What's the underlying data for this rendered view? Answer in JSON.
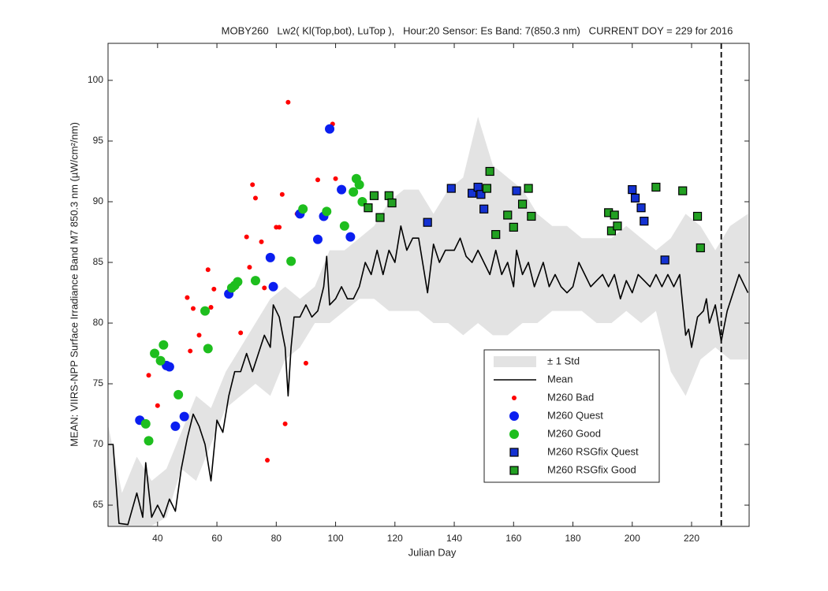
{
  "chart_data": {
    "type": "line",
    "title": "MOBY260   Lw2( Kl(Top,bot), LuTop ),   Hour:20 Sensor: Es Band: 7(850.3 nm)   CURRENT DOY = 229 for 2016",
    "x_label": "Julian Day",
    "y_label": "MEAN: VIIRS-NPP Surface Irradiance Band M7 850.3 nm (µW/cm²/nm)",
    "xlim": [
      23.3,
      239.4
    ],
    "ylim": [
      63.25,
      103.05
    ],
    "xticks": [
      40,
      60,
      80,
      100,
      120,
      140,
      160,
      180,
      200,
      220
    ],
    "yticks": [
      65,
      70,
      75,
      80,
      85,
      90,
      95,
      100
    ],
    "vline_x": 230,
    "series": [
      {
        "name": "± 1 Std",
        "type": "band",
        "color": "#e3e3e3",
        "x": [
          23,
          28,
          33,
          38,
          43,
          48,
          53,
          58,
          63,
          68,
          73,
          78,
          83,
          88,
          93,
          98,
          103,
          108,
          113,
          118,
          123,
          128,
          133,
          138,
          143,
          148,
          153,
          158,
          163,
          168,
          173,
          178,
          183,
          188,
          193,
          198,
          203,
          208,
          213,
          218,
          223,
          228,
          233,
          239
        ],
        "upper": [
          72,
          66,
          69,
          67,
          68,
          71,
          74,
          73,
          76,
          78,
          80,
          82,
          83,
          82,
          83,
          86,
          86,
          87,
          88,
          90,
          91,
          91,
          89,
          91,
          92,
          97,
          93,
          92,
          91,
          89,
          88,
          88,
          87,
          87,
          87,
          88,
          87,
          86,
          87,
          89,
          88,
          86,
          88,
          89
        ],
        "lower": [
          63.3,
          63.3,
          63.3,
          63.3,
          64,
          68,
          67,
          70,
          73,
          74,
          75,
          74,
          77,
          78,
          80,
          80,
          81,
          82,
          82,
          81,
          81,
          81,
          80,
          80,
          79,
          80,
          79,
          79,
          80,
          80,
          81,
          81,
          81,
          80,
          80,
          81,
          80,
          81,
          76,
          74,
          77,
          78,
          77,
          77
        ]
      },
      {
        "name": "Mean",
        "type": "line",
        "color": "#000000",
        "x": [
          23,
          25,
          27,
          30,
          33,
          35,
          36,
          38,
          40,
          42,
          44,
          46,
          48,
          50,
          52,
          54,
          56,
          58,
          60,
          62,
          64,
          66,
          68,
          70,
          72,
          74,
          76,
          78,
          79,
          81,
          83,
          84,
          85,
          86,
          88,
          90,
          92,
          94,
          96,
          97,
          98,
          100,
          102,
          104,
          106,
          108,
          110,
          112,
          114,
          116,
          118,
          120,
          122,
          124,
          126,
          128,
          130,
          131,
          133,
          135,
          137,
          140,
          142,
          144,
          146,
          148,
          150,
          152,
          154,
          156,
          158,
          160,
          161,
          163,
          165,
          167,
          170,
          172,
          174,
          176,
          178,
          180,
          182,
          184,
          186,
          188,
          190,
          192,
          194,
          196,
          198,
          200,
          202,
          204,
          206,
          208,
          210,
          212,
          214,
          216,
          218,
          219,
          220,
          222,
          224,
          225,
          226,
          228,
          230,
          232,
          234,
          236,
          238,
          239
        ],
        "values": [
          70,
          70,
          63.5,
          63.4,
          66,
          64,
          68.5,
          64,
          65,
          64,
          65.5,
          64.5,
          68,
          70.5,
          72.5,
          71.5,
          70,
          67,
          72,
          71,
          74,
          76,
          76,
          77.5,
          76,
          77.5,
          79,
          78,
          81.5,
          80.5,
          78,
          74,
          78,
          80.5,
          80.5,
          81.5,
          80.5,
          81,
          83,
          85.5,
          81.5,
          82,
          83,
          82,
          82,
          83,
          85,
          84,
          86,
          84,
          86,
          85,
          88,
          86,
          87,
          87,
          84,
          82.5,
          86.5,
          85,
          86,
          86,
          87,
          85.5,
          85,
          86,
          85,
          84,
          86,
          84,
          85,
          83,
          86,
          84,
          85,
          83,
          85,
          83,
          84,
          83,
          82.5,
          83,
          85,
          84,
          83,
          83.5,
          84,
          83,
          84,
          82,
          83.5,
          82.5,
          84,
          83.5,
          83,
          84,
          83,
          84,
          83,
          84,
          79,
          79.5,
          78,
          80.5,
          81,
          82,
          80,
          81.5,
          78.5,
          81,
          82.5,
          84,
          83,
          82.5
        ]
      },
      {
        "name": "M260 Bad",
        "type": "scatter",
        "marker": "dot",
        "color": "#ff0000",
        "x": [
          37,
          40,
          50,
          51,
          52,
          54,
          56,
          57,
          58,
          59,
          68,
          70,
          71,
          72,
          73,
          75,
          76,
          77,
          80,
          81,
          82,
          83,
          84,
          87,
          90,
          94,
          99,
          100
        ],
        "values": [
          75.7,
          73.2,
          82.1,
          77.7,
          81.2,
          79,
          81,
          84.4,
          81.3,
          82.8,
          79.2,
          87.1,
          84.6,
          91.4,
          90.3,
          86.7,
          82.9,
          68.7,
          87.9,
          87.9,
          90.6,
          71.7,
          98.2,
          89,
          76.7,
          91.8,
          96.4,
          91.9
        ]
      },
      {
        "name": "M260 Quest",
        "type": "scatter",
        "marker": "circle",
        "color": "#0a1ef0",
        "x": [
          34,
          43,
          44,
          46,
          49,
          64,
          78,
          79,
          88,
          94,
          96,
          98,
          102,
          105
        ],
        "values": [
          72,
          76.5,
          76.4,
          71.5,
          72.3,
          82.4,
          85.4,
          83,
          89,
          86.9,
          88.8,
          96,
          91,
          87.1
        ]
      },
      {
        "name": "M260 Good",
        "type": "scatter",
        "marker": "circle",
        "color": "#1ebe1e",
        "x": [
          36,
          37,
          39,
          41,
          42,
          47,
          56,
          57,
          65,
          66,
          67,
          73,
          85,
          89,
          97,
          103,
          106,
          107,
          108,
          109
        ],
        "values": [
          71.7,
          70.3,
          77.5,
          76.9,
          78.2,
          74.1,
          81,
          77.9,
          82.9,
          83.1,
          83.4,
          83.5,
          85.1,
          89.4,
          89.2,
          88,
          90.8,
          91.9,
          91.4,
          90
        ]
      },
      {
        "name": "M260 RSGfix Quest",
        "type": "scatter",
        "marker": "square",
        "color": "#1432d2",
        "x": [
          131,
          139,
          146,
          148,
          149,
          150,
          161,
          200,
          201,
          203,
          204,
          211
        ],
        "values": [
          88.3,
          91.1,
          90.7,
          91.2,
          90.6,
          89.4,
          90.9,
          91,
          90.3,
          89.5,
          88.4,
          85.2
        ]
      },
      {
        "name": "M260 RSGfix Good",
        "type": "scatter",
        "marker": "square",
        "color": "#22a022",
        "x": [
          111,
          113,
          115,
          118,
          119,
          151,
          152,
          154,
          158,
          160,
          163,
          165,
          166,
          192,
          193,
          194,
          195,
          208,
          217,
          222,
          223
        ],
        "values": [
          89.5,
          90.5,
          88.7,
          90.5,
          89.9,
          91.1,
          92.5,
          87.3,
          88.9,
          87.9,
          89.8,
          91.1,
          88.8,
          89.1,
          87.6,
          88.9,
          88,
          91.2,
          90.9,
          88.8,
          86.2
        ]
      }
    ]
  }
}
